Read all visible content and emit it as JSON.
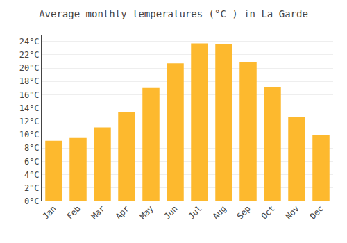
{
  "chart_data": {
    "type": "bar",
    "title": "Average monthly temperatures (°C ) in La Garde",
    "categories": [
      "Jan",
      "Feb",
      "Mar",
      "Apr",
      "May",
      "Jun",
      "Jul",
      "Aug",
      "Sep",
      "Oct",
      "Nov",
      "Dec"
    ],
    "values": [
      9.1,
      9.5,
      11.1,
      13.4,
      17.0,
      20.7,
      23.7,
      23.6,
      20.9,
      17.1,
      12.6,
      10.0
    ],
    "color": "#FDB92E",
    "ylim": [
      0,
      25
    ],
    "yticks": [
      {
        "value": 0,
        "label": "0°C"
      },
      {
        "value": 2,
        "label": "2°C"
      },
      {
        "value": 4,
        "label": "4°C"
      },
      {
        "value": 6,
        "label": "6°C"
      },
      {
        "value": 8,
        "label": "8°C"
      },
      {
        "value": 10,
        "label": "10°C"
      },
      {
        "value": 12,
        "label": "12°C"
      },
      {
        "value": 14,
        "label": "14°C"
      },
      {
        "value": 16,
        "label": "16°C"
      },
      {
        "value": 18,
        "label": "18°C"
      },
      {
        "value": 20,
        "label": "20°C"
      },
      {
        "value": 22,
        "label": "22°C"
      },
      {
        "value": 24,
        "label": "24°C"
      }
    ],
    "grid": true
  }
}
